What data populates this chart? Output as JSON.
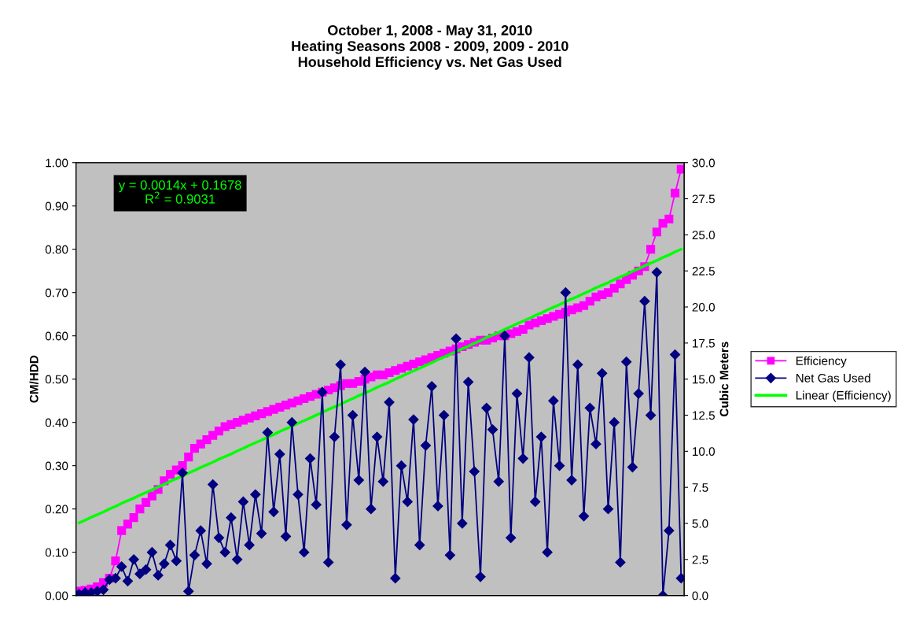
{
  "chart_data": {
    "type": "line",
    "title": "October 1, 2008 - May 31, 2010\nHeating Seasons 2008 - 2009, 2009 - 2010\nHousehold Efficiency vs. Net Gas Used",
    "ylabel": "CM/HDD",
    "y2label": "Cubic Meters",
    "annotations": [
      "y = 0.0014x + 0.1678\nR$^{2}$ = 0.9031"
    ],
    "categories": [
      null,
      null,
      null,
      null,
      null,
      null,
      null,
      null,
      null,
      null,
      null,
      null,
      null,
      null,
      null,
      null,
      null,
      null,
      null,
      null,
      null,
      null,
      null,
      null,
      null,
      null,
      null,
      null,
      null,
      null,
      null,
      null,
      null,
      null,
      null,
      null,
      null,
      null,
      null,
      null,
      null,
      null,
      null,
      null,
      null,
      null,
      null,
      null,
      null,
      null,
      null,
      null,
      null,
      null,
      null,
      null,
      null,
      null,
      null,
      null,
      null,
      null,
      null,
      null,
      null,
      null,
      null,
      null,
      null,
      null,
      null,
      null,
      null,
      null,
      null,
      null,
      null,
      null,
      null,
      null,
      null,
      null,
      null,
      null,
      null,
      null,
      null,
      null,
      null,
      null,
      null,
      null,
      null,
      null,
      null,
      null,
      null,
      null,
      null,
      null
    ],
    "ylim": [
      0,
      1
    ],
    "yticks": [
      {
        "value": 0,
        "label": "0.00"
      },
      {
        "value": 0.1,
        "label": "0.10"
      },
      {
        "value": 0.2,
        "label": "0.20"
      },
      {
        "value": 0.3,
        "label": "0.30"
      },
      {
        "value": 0.4,
        "label": "0.40"
      },
      {
        "value": 0.5,
        "label": "0.50"
      },
      {
        "value": 0.6,
        "label": "0.60"
      },
      {
        "value": 0.7,
        "label": "0.70"
      },
      {
        "value": 0.8,
        "label": "0.80"
      },
      {
        "value": 0.9,
        "label": "0.90"
      },
      {
        "value": 1,
        "label": "1.00"
      }
    ],
    "y2lim": [
      0,
      30
    ],
    "y2ticks": [
      {
        "value": 0,
        "label": "0.0"
      },
      {
        "value": 2.5,
        "label": "2.5"
      },
      {
        "value": 5,
        "label": "5.0"
      },
      {
        "value": 7.5,
        "label": "7.5"
      },
      {
        "value": 10,
        "label": "10.0"
      },
      {
        "value": 12.5,
        "label": "12.5"
      },
      {
        "value": 15,
        "label": "15.0"
      },
      {
        "value": 17.5,
        "label": "17.5"
      },
      {
        "value": 20,
        "label": "20.0"
      },
      {
        "value": 22.5,
        "label": "22.5"
      },
      {
        "value": 25,
        "label": "25.0"
      },
      {
        "value": 27.5,
        "label": "27.5"
      },
      {
        "value": 30,
        "label": "30.0"
      }
    ],
    "grid": false,
    "legend": "right",
    "series": [
      {
        "name": "Efficiency",
        "color": "#ff00ff",
        "marker": "square",
        "values": [
          0.01,
          0.012,
          0.015,
          0.02,
          0.03,
          0.04,
          0.08,
          0.15,
          0.165,
          0.18,
          0.2,
          0.215,
          0.23,
          0.245,
          0.265,
          0.28,
          0.29,
          0.3,
          0.32,
          0.34,
          0.35,
          0.36,
          0.37,
          0.38,
          0.39,
          0.395,
          0.4,
          0.405,
          0.41,
          0.415,
          0.42,
          0.425,
          0.43,
          0.435,
          0.44,
          0.445,
          0.45,
          0.455,
          0.46,
          0.465,
          0.47,
          0.475,
          0.48,
          0.485,
          0.49,
          0.49,
          0.495,
          0.5,
          0.505,
          0.51,
          0.51,
          0.515,
          0.52,
          0.525,
          0.53,
          0.535,
          0.54,
          0.545,
          0.55,
          0.555,
          0.56,
          0.565,
          0.57,
          0.575,
          0.58,
          0.585,
          0.59,
          0.59,
          0.595,
          0.6,
          0.6,
          0.605,
          0.61,
          0.615,
          0.625,
          0.63,
          0.635,
          0.64,
          0.645,
          0.65,
          0.655,
          0.66,
          0.665,
          0.67,
          0.68,
          0.69,
          0.695,
          0.7,
          0.71,
          0.72,
          0.73,
          0.74,
          0.75,
          0.76,
          0.8,
          0.84,
          0.86,
          0.87,
          0.93,
          0.985
        ]
      },
      {
        "name": "Net Gas Used",
        "color": "#000080",
        "marker": "diamond",
        "axis": "y2",
        "values": [
          0.1,
          0.2,
          0.2,
          0.3,
          0.4,
          1.1,
          1.2,
          2.0,
          1.0,
          2.5,
          1.5,
          1.8,
          3.0,
          1.4,
          2.2,
          3.5,
          2.4,
          8.5,
          0.3,
          2.8,
          4.5,
          2.2,
          7.7,
          4.0,
          3.0,
          5.4,
          2.5,
          6.5,
          3.5,
          7.0,
          4.3,
          11.3,
          5.8,
          9.8,
          4.1,
          12.0,
          7.0,
          3.0,
          9.5,
          6.3,
          14.1,
          2.3,
          11.0,
          16.0,
          4.9,
          12.5,
          8.0,
          15.5,
          6.0,
          11.0,
          7.9,
          13.4,
          1.2,
          9.0,
          6.5,
          12.2,
          3.5,
          10.4,
          14.5,
          6.2,
          12.5,
          2.8,
          17.8,
          5.0,
          14.8,
          8.6,
          1.3,
          13.0,
          11.5,
          7.9,
          18.0,
          4.0,
          14.0,
          9.5,
          16.5,
          6.5,
          11.0,
          3.0,
          13.5,
          9.0,
          21.0,
          8.0,
          16.0,
          5.5,
          13.0,
          10.5,
          15.4,
          6.0,
          12.0,
          2.3,
          16.2,
          8.9,
          14.0,
          20.4,
          12.5,
          22.4,
          0.0,
          4.5,
          16.7,
          1.2
        ]
      },
      {
        "name": "Linear (Efficiency)",
        "color": "#00ff00",
        "marker": "none",
        "values": [
          0.168,
          0.174,
          0.181,
          0.187,
          0.193,
          0.2,
          0.206,
          0.213,
          0.219,
          0.225,
          0.232,
          0.238,
          0.244,
          0.251,
          0.257,
          0.264,
          0.27,
          0.276,
          0.283,
          0.289,
          0.296,
          0.302,
          0.308,
          0.315,
          0.321,
          0.327,
          0.334,
          0.34,
          0.347,
          0.353,
          0.359,
          0.366,
          0.372,
          0.379,
          0.385,
          0.391,
          0.398,
          0.404,
          0.41,
          0.417,
          0.423,
          0.43,
          0.436,
          0.442,
          0.449,
          0.455,
          0.462,
          0.468,
          0.474,
          0.481,
          0.487,
          0.493,
          0.5,
          0.506,
          0.513,
          0.519,
          0.525,
          0.532,
          0.538,
          0.545,
          0.551,
          0.557,
          0.564,
          0.57,
          0.576,
          0.583,
          0.589,
          0.596,
          0.602,
          0.608,
          0.615,
          0.621,
          0.628,
          0.634,
          0.64,
          0.647,
          0.653,
          0.66,
          0.666,
          0.672,
          0.679,
          0.685,
          0.691,
          0.698,
          0.704,
          0.711,
          0.717,
          0.723,
          0.73,
          0.736,
          0.742,
          0.749,
          0.755,
          0.762,
          0.768,
          0.774,
          0.781,
          0.787,
          0.794,
          0.8
        ]
      }
    ]
  }
}
